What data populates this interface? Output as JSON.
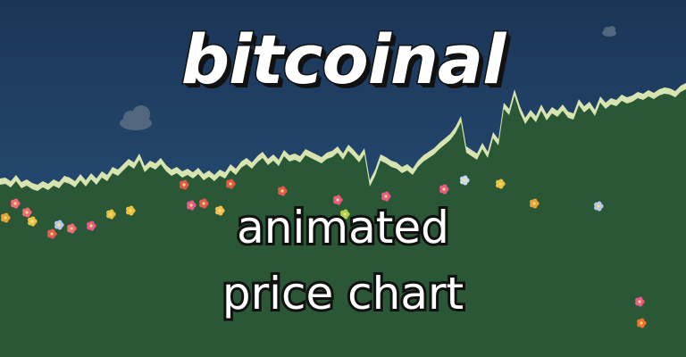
{
  "header": {
    "title": "bitcoinal"
  },
  "tagline": {
    "line1": "animated",
    "line2": "price chart"
  },
  "chart_data": {
    "type": "area",
    "series": [
      {
        "values": [
          30,
          31,
          27,
          34,
          26,
          29,
          25,
          23,
          27,
          24,
          29,
          26,
          33,
          31,
          27,
          35,
          28,
          36,
          30,
          38,
          34,
          43,
          40,
          46,
          52,
          48,
          58,
          44,
          50,
          47,
          53,
          45,
          40,
          43,
          38,
          41,
          37,
          42,
          35,
          39,
          34,
          40,
          37,
          46,
          41,
          49,
          53,
          48,
          55,
          60,
          52,
          57,
          51,
          62,
          56,
          58,
          55,
          63,
          60,
          57,
          54,
          59,
          61,
          66,
          58,
          68,
          62,
          55,
          64,
          28,
          40,
          57,
          54,
          50,
          48,
          43,
          46,
          41,
          50,
          56,
          60,
          64,
          70,
          75,
          80,
          88,
          100,
          66,
          62,
          58,
          70,
          60,
          82,
          74,
          115,
          108,
          130,
          111,
          98,
          107,
          100,
          113,
          102,
          110,
          106,
          113,
          105,
          103,
          119,
          111,
          116,
          107,
          122,
          115,
          120,
          118,
          124,
          121,
          123,
          127,
          125,
          129,
          126,
          130,
          132,
          131,
          128,
          134,
          137
        ]
      }
    ]
  },
  "colors": {
    "sky_top": "#1a3556",
    "sky_bottom": "#2a5480",
    "ground": "#2a5735",
    "ridge": "#d8e4b0",
    "cloud": "#52667e",
    "logo_fill": "#ffffff",
    "outline": "#111111"
  }
}
